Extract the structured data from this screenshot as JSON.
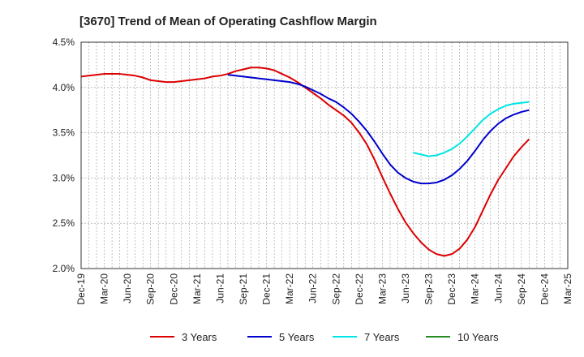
{
  "chart_data": {
    "type": "line",
    "title": "[3670]  Trend of Mean of Operating Cashflow Margin",
    "xlabel": "",
    "ylabel": "",
    "ylim": [
      2.0,
      4.5
    ],
    "yticks": [
      "4.5%",
      "4.0%",
      "3.5%",
      "3.0%",
      "2.5%",
      "2.0%"
    ],
    "x_ticks": [
      "Dec-19",
      "Mar-20",
      "Jun-20",
      "Sep-20",
      "Dec-20",
      "Mar-21",
      "Jun-21",
      "Sep-21",
      "Dec-21",
      "Mar-22",
      "Jun-22",
      "Sep-22",
      "Dec-22",
      "Mar-23",
      "Jun-23",
      "Sep-23",
      "Dec-23",
      "Mar-24",
      "Jun-24",
      "Sep-24",
      "Dec-24",
      "Mar-25"
    ],
    "x_start": "Dec-19",
    "x_end": "Mar-25",
    "grid": true,
    "legend_position": "bottom",
    "series": [
      {
        "name": "3 Years",
        "color": "#dd0000",
        "points": [
          [
            "Dec-19",
            4.12
          ],
          [
            "Jan-20",
            4.13
          ],
          [
            "Feb-20",
            4.14
          ],
          [
            "Mar-20",
            4.15
          ],
          [
            "Apr-20",
            4.15
          ],
          [
            "May-20",
            4.15
          ],
          [
            "Jun-20",
            4.14
          ],
          [
            "Jul-20",
            4.13
          ],
          [
            "Aug-20",
            4.11
          ],
          [
            "Sep-20",
            4.08
          ],
          [
            "Oct-20",
            4.07
          ],
          [
            "Nov-20",
            4.06
          ],
          [
            "Dec-20",
            4.06
          ],
          [
            "Jan-21",
            4.07
          ],
          [
            "Feb-21",
            4.08
          ],
          [
            "Mar-21",
            4.09
          ],
          [
            "Apr-21",
            4.1
          ],
          [
            "May-21",
            4.12
          ],
          [
            "Jun-21",
            4.13
          ],
          [
            "Jul-21",
            4.15
          ],
          [
            "Aug-21",
            4.18
          ],
          [
            "Sep-21",
            4.2
          ],
          [
            "Oct-21",
            4.22
          ],
          [
            "Nov-21",
            4.22
          ],
          [
            "Dec-21",
            4.21
          ],
          [
            "Jan-22",
            4.19
          ],
          [
            "Feb-22",
            4.15
          ],
          [
            "Mar-22",
            4.11
          ],
          [
            "Apr-22",
            4.06
          ],
          [
            "May-22",
            4.0
          ],
          [
            "Jun-22",
            3.94
          ],
          [
            "Jul-22",
            3.88
          ],
          [
            "Aug-22",
            3.81
          ],
          [
            "Sep-22",
            3.75
          ],
          [
            "Oct-22",
            3.69
          ],
          [
            "Nov-22",
            3.61
          ],
          [
            "Dec-22",
            3.5
          ],
          [
            "Jan-23",
            3.37
          ],
          [
            "Feb-23",
            3.2
          ],
          [
            "Mar-23",
            3.01
          ],
          [
            "Apr-23",
            2.83
          ],
          [
            "May-23",
            2.66
          ],
          [
            "Jun-23",
            2.51
          ],
          [
            "Jul-23",
            2.39
          ],
          [
            "Aug-23",
            2.29
          ],
          [
            "Sep-23",
            2.21
          ],
          [
            "Oct-23",
            2.16
          ],
          [
            "Nov-23",
            2.14
          ],
          [
            "Dec-23",
            2.16
          ],
          [
            "Jan-24",
            2.22
          ],
          [
            "Feb-24",
            2.32
          ],
          [
            "Mar-24",
            2.46
          ],
          [
            "Apr-24",
            2.64
          ],
          [
            "May-24",
            2.82
          ],
          [
            "Jun-24",
            2.98
          ],
          [
            "Jul-24",
            3.11
          ],
          [
            "Aug-24",
            3.24
          ],
          [
            "Sep-24",
            3.34
          ],
          [
            "Oct-24",
            3.43
          ]
        ]
      },
      {
        "name": "5 Years",
        "color": "#0000cc",
        "points": [
          [
            "Jul-21",
            4.14
          ],
          [
            "Aug-21",
            4.13
          ],
          [
            "Sep-21",
            4.12
          ],
          [
            "Oct-21",
            4.11
          ],
          [
            "Nov-21",
            4.1
          ],
          [
            "Dec-21",
            4.09
          ],
          [
            "Jan-22",
            4.08
          ],
          [
            "Feb-22",
            4.07
          ],
          [
            "Mar-22",
            4.06
          ],
          [
            "Apr-22",
            4.04
          ],
          [
            "May-22",
            4.01
          ],
          [
            "Jun-22",
            3.97
          ],
          [
            "Jul-22",
            3.93
          ],
          [
            "Aug-22",
            3.88
          ],
          [
            "Sep-22",
            3.84
          ],
          [
            "Oct-22",
            3.78
          ],
          [
            "Nov-22",
            3.71
          ],
          [
            "Dec-22",
            3.62
          ],
          [
            "Jan-23",
            3.52
          ],
          [
            "Feb-23",
            3.4
          ],
          [
            "Mar-23",
            3.27
          ],
          [
            "Apr-23",
            3.15
          ],
          [
            "May-23",
            3.06
          ],
          [
            "Jun-23",
            3.0
          ],
          [
            "Jul-23",
            2.96
          ],
          [
            "Aug-23",
            2.94
          ],
          [
            "Sep-23",
            2.94
          ],
          [
            "Oct-23",
            2.95
          ],
          [
            "Nov-23",
            2.98
          ],
          [
            "Dec-23",
            3.03
          ],
          [
            "Jan-24",
            3.1
          ],
          [
            "Feb-24",
            3.19
          ],
          [
            "Mar-24",
            3.3
          ],
          [
            "Apr-24",
            3.42
          ],
          [
            "May-24",
            3.52
          ],
          [
            "Jun-24",
            3.6
          ],
          [
            "Jul-24",
            3.66
          ],
          [
            "Aug-24",
            3.7
          ],
          [
            "Sep-24",
            3.73
          ],
          [
            "Oct-24",
            3.75
          ]
        ]
      },
      {
        "name": "7 Years",
        "color": "#00e5e5",
        "points": [
          [
            "Jul-23",
            3.28
          ],
          [
            "Aug-23",
            3.26
          ],
          [
            "Sep-23",
            3.24
          ],
          [
            "Oct-23",
            3.25
          ],
          [
            "Nov-23",
            3.28
          ],
          [
            "Dec-23",
            3.32
          ],
          [
            "Jan-24",
            3.38
          ],
          [
            "Feb-24",
            3.46
          ],
          [
            "Mar-24",
            3.55
          ],
          [
            "Apr-24",
            3.64
          ],
          [
            "May-24",
            3.71
          ],
          [
            "Jun-24",
            3.76
          ],
          [
            "Jul-24",
            3.8
          ],
          [
            "Aug-24",
            3.82
          ],
          [
            "Sep-24",
            3.83
          ],
          [
            "Oct-24",
            3.84
          ]
        ]
      },
      {
        "name": "10 Years",
        "color": "#228b22",
        "points": []
      }
    ]
  }
}
